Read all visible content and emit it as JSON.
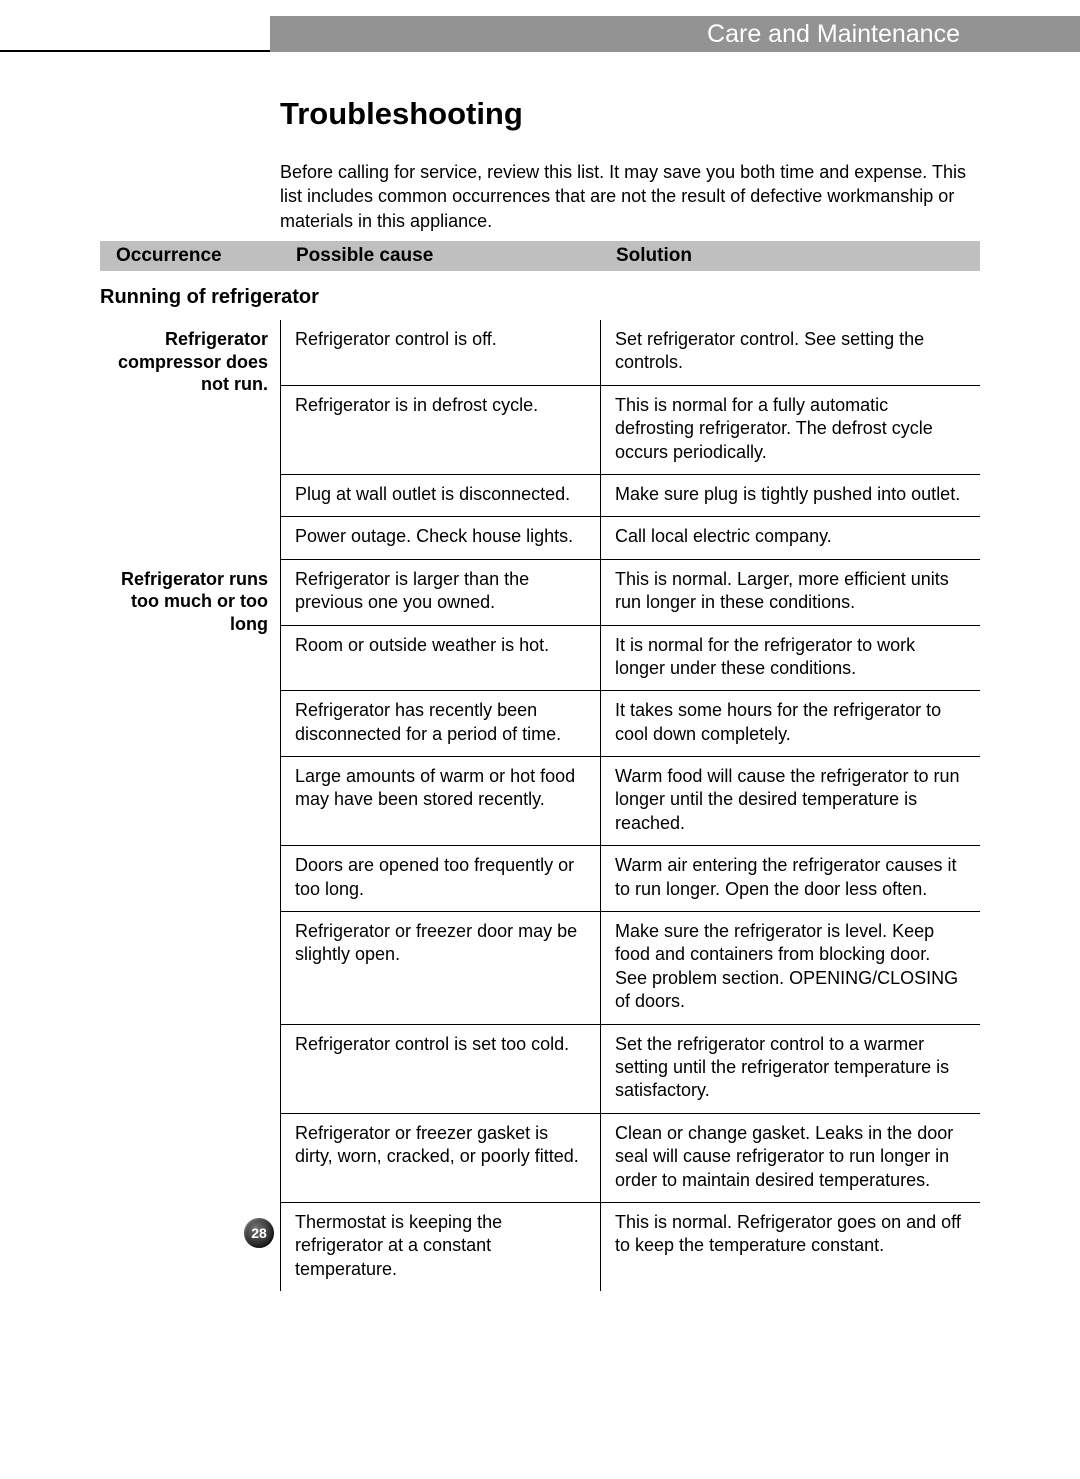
{
  "page": {
    "header_title": "Care and Maintenance",
    "section_title": "Troubleshooting",
    "intro": "Before calling for service, review this list. It may save you both time and expense. This list includes common occurrences that are not the result of defective workmanship or materials in this appliance.",
    "page_number": "28"
  },
  "columns": {
    "occurrence": "Occurrence",
    "cause": "Possible cause",
    "solution": "Solution"
  },
  "subsection": "Running of refrigerator",
  "groups": [
    {
      "occurrence": "Refrigerator compressor does not run.",
      "rows": [
        {
          "cause": "Refrigerator control is off.",
          "solution": "Set refrigerator control. See setting the controls."
        },
        {
          "cause": "Refrigerator is in defrost cycle.",
          "solution": "This is normal for a fully automatic defrosting refrigerator. The defrost cycle occurs periodically."
        },
        {
          "cause": "Plug at wall outlet is disconnected.",
          "solution": "Make sure plug is tightly pushed into outlet."
        },
        {
          "cause": "Power outage. Check house lights.",
          "solution": "Call local electric company."
        }
      ]
    },
    {
      "occurrence": "Refrigerator runs too much or too long",
      "rows": [
        {
          "cause": "Refrigerator is larger than the previous one you owned.",
          "solution": "This is normal. Larger, more efficient units run longer in these conditions."
        },
        {
          "cause": "Room or outside weather is hot.",
          "solution": "It is normal for the refrigerator to work longer under these conditions."
        },
        {
          "cause": "Refrigerator has recently been disconnected for a period of time.",
          "solution": "It takes some hours for the refrigerator to cool down completely."
        },
        {
          "cause": "Large amounts of warm or hot food may have been stored recently.",
          "solution": "Warm food will cause the refrigerator to run longer until the desired temperature is reached."
        },
        {
          "cause": "Doors are opened too frequently or too long.",
          "solution": "Warm air entering the refrigerator causes it to run longer. Open the door less often."
        },
        {
          "cause": "Refrigerator or freezer door may be slightly open.",
          "solution": "Make sure the refrigerator is level. Keep food and containers from blocking door. See problem section. OPENING/CLOSING of doors."
        },
        {
          "cause": "Refrigerator control is set too cold.",
          "solution": "Set the refrigerator control to a warmer setting until the refrigerator temperature is satisfactory."
        },
        {
          "cause": "Refrigerator or freezer gasket is dirty, worn, cracked, or poorly fitted.",
          "solution": "Clean or change gasket. Leaks in the door seal will cause refrigerator to run longer in order to maintain desired temperatures."
        },
        {
          "cause": "Thermostat is keeping the refrigerator at a constant temperature.",
          "solution": "This is normal. Refrigerator goes on and off to keep the temperature constant."
        }
      ]
    }
  ],
  "styling": {
    "header_bg": "#939393",
    "header_text": "#ffffff",
    "col_header_bg": "#bfbfbf",
    "body_text": "#000000",
    "border_color": "#000000",
    "title_fontsize": 31,
    "body_fontsize": 18,
    "header_fontsize": 25
  }
}
